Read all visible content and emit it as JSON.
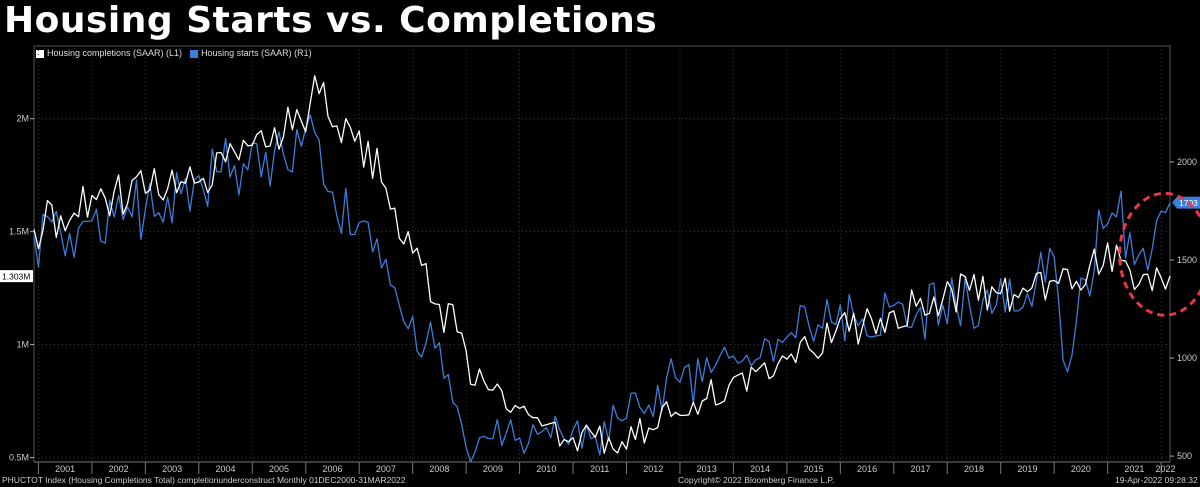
{
  "title": "Housing Starts vs. Completions",
  "legend": [
    {
      "label": "Housing completions (SAAR) (L1)",
      "color": "#ffffff"
    },
    {
      "label": "Housing starts (SAAR) (R1)",
      "color": "#3c7dd9"
    }
  ],
  "footer": {
    "left": "PHUCTOT Index (Housing Completions Total) completionunderconstruct  Monthly 01DEC2000-31MAR2022",
    "center": "Copyright© 2022 Bloomberg Finance L.P.",
    "right": "19-Apr-2022 09:28:32"
  },
  "chart_data": {
    "type": "line",
    "title": "Housing Starts vs. Completions",
    "x_range": [
      "2000-12",
      "2022-03"
    ],
    "x_ticks": [
      "2001",
      "2002",
      "2003",
      "2004",
      "2005",
      "2006",
      "2007",
      "2008",
      "2009",
      "2010",
      "2011",
      "2012",
      "2013",
      "2014",
      "2015",
      "2016",
      "2017",
      "2018",
      "2019",
      "2020",
      "2021",
      "2022"
    ],
    "y_left": {
      "ticks": [
        "0.5M",
        "1M",
        "1.5M",
        "2M"
      ],
      "tick_values": [
        500,
        1000,
        1500,
        2000
      ],
      "range": [
        480,
        2260
      ],
      "last_value_label": "1.303M"
    },
    "y_right": {
      "ticks": [
        "500",
        "1000",
        "1500",
        "2000"
      ],
      "tick_values": [
        500,
        1000,
        1500,
        2000
      ],
      "range": [
        470,
        2520
      ],
      "last_value_label": "1793"
    },
    "grid": true,
    "legend_position": "top-left",
    "series": [
      {
        "name": "Housing completions (SAAR) (L1)",
        "axis": "left",
        "color": "#ffffff",
        "anchors": [
          [
            "2000-12",
            1510
          ],
          [
            "2001-06",
            1570
          ],
          [
            "2002-01",
            1660
          ],
          [
            "2002-06",
            1680
          ],
          [
            "2003-01",
            1670
          ],
          [
            "2003-06",
            1690
          ],
          [
            "2004-01",
            1720
          ],
          [
            "2004-06",
            1850
          ],
          [
            "2004-12",
            1880
          ],
          [
            "2005-06",
            1960
          ],
          [
            "2005-12",
            1990
          ],
          [
            "2006-03",
            2190
          ],
          [
            "2006-06",
            2010
          ],
          [
            "2006-12",
            1900
          ],
          [
            "2007-03",
            1900
          ],
          [
            "2007-06",
            1720
          ],
          [
            "2007-12",
            1500
          ],
          [
            "2008-06",
            1180
          ],
          [
            "2008-12",
            1050
          ],
          [
            "2009-03",
            820
          ],
          [
            "2009-06",
            800
          ],
          [
            "2009-12",
            730
          ],
          [
            "2010-03",
            690
          ],
          [
            "2010-06",
            640
          ],
          [
            "2010-12",
            570
          ],
          [
            "2011-06",
            590
          ],
          [
            "2011-12",
            570
          ],
          [
            "2012-06",
            630
          ],
          [
            "2012-12",
            700
          ],
          [
            "2013-06",
            750
          ],
          [
            "2013-12",
            820
          ],
          [
            "2014-06",
            880
          ],
          [
            "2014-12",
            950
          ],
          [
            "2015-06",
            980
          ],
          [
            "2015-12",
            1060
          ],
          [
            "2016-06",
            1080
          ],
          [
            "2016-12",
            1140
          ],
          [
            "2017-06",
            1170
          ],
          [
            "2017-12",
            1200
          ],
          [
            "2018-06",
            1240
          ],
          [
            "2018-12",
            1230
          ],
          [
            "2019-06",
            1250
          ],
          [
            "2019-12",
            1280
          ],
          [
            "2020-06",
            1280
          ],
          [
            "2020-12",
            1350
          ],
          [
            "2021-03",
            1440
          ],
          [
            "2021-06",
            1330
          ],
          [
            "2021-09",
            1310
          ],
          [
            "2021-12",
            1340
          ],
          [
            "2022-03",
            1303
          ]
        ]
      },
      {
        "name": "Housing starts (SAAR) (R1)",
        "axis": "right",
        "color": "#3c7dd9",
        "anchors": [
          [
            "2000-12",
            1620
          ],
          [
            "2001-06",
            1640
          ],
          [
            "2002-01",
            1700
          ],
          [
            "2002-06",
            1720
          ],
          [
            "2003-01",
            1760
          ],
          [
            "2003-06",
            1820
          ],
          [
            "2004-01",
            1930
          ],
          [
            "2004-06",
            1950
          ],
          [
            "2004-12",
            1960
          ],
          [
            "2005-06",
            2060
          ],
          [
            "2005-12",
            2080
          ],
          [
            "2006-02",
            2240
          ],
          [
            "2006-06",
            1850
          ],
          [
            "2006-12",
            1630
          ],
          [
            "2007-06",
            1460
          ],
          [
            "2007-12",
            1150
          ],
          [
            "2008-06",
            1050
          ],
          [
            "2008-12",
            660
          ],
          [
            "2009-03",
            520
          ],
          [
            "2009-06",
            590
          ],
          [
            "2009-12",
            580
          ],
          [
            "2010-04",
            660
          ],
          [
            "2010-12",
            560
          ],
          [
            "2011-06",
            600
          ],
          [
            "2011-12",
            680
          ],
          [
            "2012-06",
            760
          ],
          [
            "2012-12",
            900
          ],
          [
            "2013-06",
            880
          ],
          [
            "2013-12",
            1000
          ],
          [
            "2014-06",
            990
          ],
          [
            "2014-12",
            1080
          ],
          [
            "2015-06",
            1160
          ],
          [
            "2015-12",
            1170
          ],
          [
            "2016-06",
            1200
          ],
          [
            "2016-12",
            1260
          ],
          [
            "2017-06",
            1220
          ],
          [
            "2017-12",
            1270
          ],
          [
            "2018-06",
            1270
          ],
          [
            "2018-12",
            1270
          ],
          [
            "2019-06",
            1260
          ],
          [
            "2019-12",
            1560
          ],
          [
            "2020-04",
            930
          ],
          [
            "2020-08",
            1400
          ],
          [
            "2020-12",
            1660
          ],
          [
            "2021-03",
            1720
          ],
          [
            "2021-06",
            1640
          ],
          [
            "2021-09",
            1560
          ],
          [
            "2021-12",
            1700
          ],
          [
            "2022-03",
            1793
          ]
        ]
      }
    ],
    "annotations": [
      {
        "type": "ellipse",
        "color": "#e63946",
        "around": "2021-2022 latest values"
      }
    ]
  }
}
